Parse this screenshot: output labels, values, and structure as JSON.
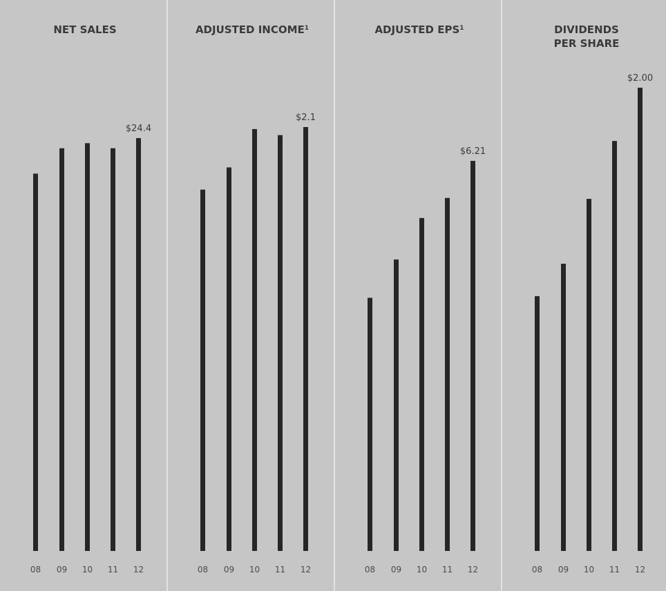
{
  "chart_data": [
    {
      "type": "bar",
      "title": "NET SALES",
      "title_sup": "",
      "categories": [
        "08",
        "09",
        "10",
        "11",
        "12"
      ],
      "values": [
        22.3,
        23.8,
        24.1,
        23.8,
        24.4
      ],
      "value_labels": [
        "",
        "",
        "",
        "",
        "$24.4"
      ],
      "ylim": [
        0,
        24.4
      ],
      "grid": false,
      "legend": "none"
    },
    {
      "type": "bar",
      "title": "ADJUSTED INCOME",
      "title_sup": "1",
      "categories": [
        "08",
        "09",
        "10",
        "11",
        "12"
      ],
      "values": [
        1.79,
        1.9,
        2.09,
        2.06,
        2.1
      ],
      "value_labels": [
        "",
        "",
        "",
        "",
        "$2.1"
      ],
      "ylim": [
        0,
        2.1
      ],
      "grid": false,
      "legend": "none"
    },
    {
      "type": "bar",
      "title": "ADJUSTED EPS",
      "title_sup": "1",
      "categories": [
        "08",
        "09",
        "10",
        "11",
        "12"
      ],
      "values": [
        4.03,
        4.64,
        5.3,
        5.62,
        6.21
      ],
      "value_labels": [
        "",
        "",
        "",
        "",
        "$6.21"
      ],
      "ylim": [
        0,
        6.21
      ],
      "grid": false,
      "legend": "none"
    },
    {
      "type": "bar",
      "title": "DIVIDENDS",
      "title_line2": "PER SHARE",
      "title_sup": "",
      "categories": [
        "08",
        "09",
        "10",
        "11",
        "12"
      ],
      "values": [
        1.1,
        1.24,
        1.52,
        1.77,
        2.0
      ],
      "value_labels": [
        "",
        "",
        "",
        "",
        "$2.00"
      ],
      "ylim": [
        0,
        2.0
      ],
      "grid": false,
      "legend": "none"
    }
  ]
}
